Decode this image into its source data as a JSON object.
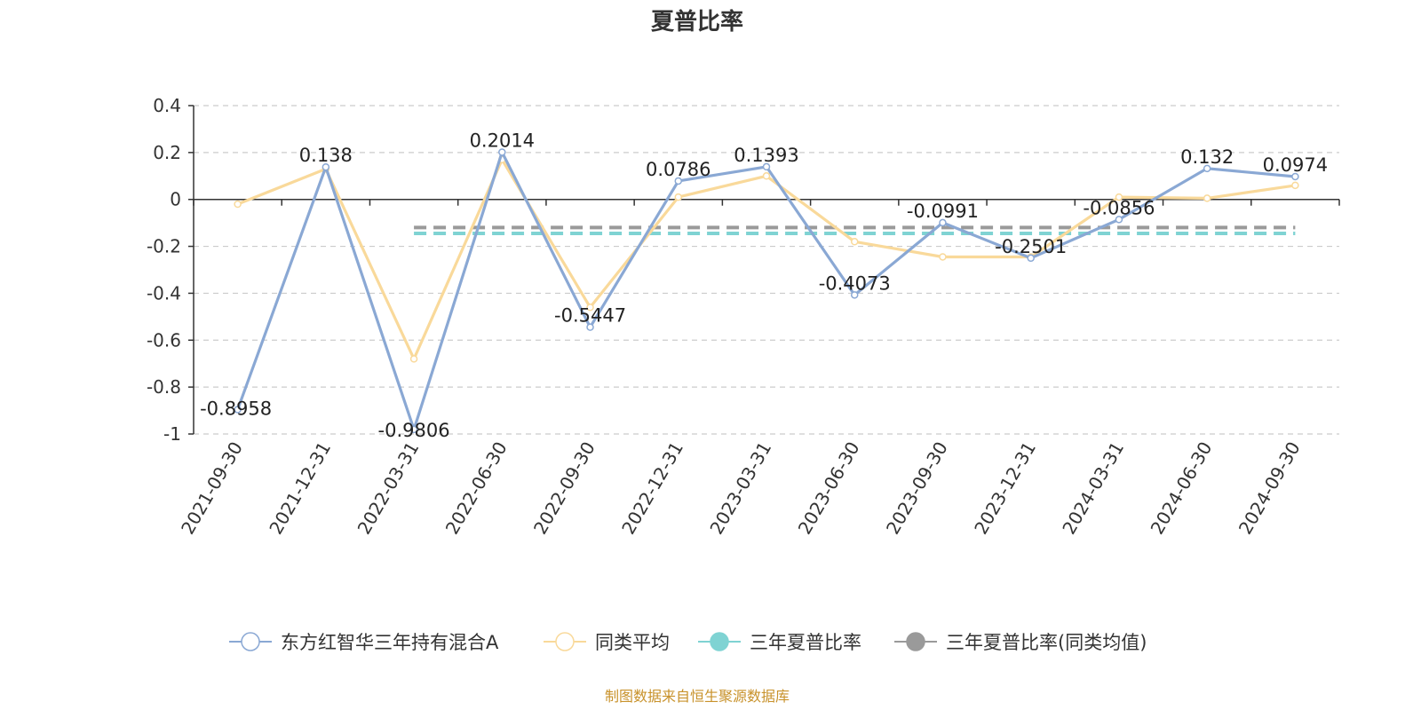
{
  "chart_data": {
    "type": "line",
    "title": "夏普比率",
    "categories": [
      "2021-09-30",
      "2021-12-31",
      "2022-03-31",
      "2022-06-30",
      "2022-09-30",
      "2022-12-31",
      "2023-03-31",
      "2023-06-30",
      "2023-09-30",
      "2023-12-31",
      "2024-03-31",
      "2024-06-30",
      "2024-09-30"
    ],
    "ylim": [
      -1,
      0.4
    ],
    "yticks": [
      "0.4",
      "0.2",
      "0",
      "-0.2",
      "-0.4",
      "-0.6",
      "-0.8",
      "-1"
    ],
    "grid": true,
    "legend_position": "bottom",
    "series": [
      {
        "name": "东方红智华三年持有混合A",
        "color": "#8aa8d4",
        "values": [
          -0.8958,
          0.138,
          -0.9806,
          0.2014,
          -0.5447,
          0.0786,
          0.1393,
          -0.4073,
          -0.0991,
          -0.2501,
          -0.0856,
          0.132,
          0.0974
        ],
        "labels": [
          "-0.8958",
          "0.138",
          "-0.9806",
          "0.2014",
          "-0.5447",
          "0.0786",
          "0.1393",
          "-0.4073",
          "-0.0991",
          "-0.2501",
          "-0.0856",
          "0.132",
          "0.0974"
        ]
      },
      {
        "name": "同类平均",
        "color": "#f9d99a",
        "values": [
          -0.02,
          0.13,
          -0.68,
          0.17,
          -0.46,
          0.01,
          0.1,
          -0.18,
          -0.245,
          -0.245,
          0.01,
          0.005,
          0.06
        ]
      },
      {
        "name": "三年夏普比率",
        "color": "#7fd3d3",
        "values": [
          null,
          null,
          -0.145,
          -0.145,
          -0.145,
          -0.145,
          -0.145,
          -0.145,
          -0.145,
          -0.145,
          -0.145,
          -0.145,
          -0.145
        ],
        "dashed": true
      },
      {
        "name": "三年夏普比率(同类均值)",
        "color": "#9a9a9a",
        "values": [
          null,
          null,
          -0.12,
          -0.12,
          -0.12,
          -0.12,
          -0.12,
          -0.12,
          -0.12,
          -0.12,
          -0.12,
          -0.12,
          -0.12
        ],
        "dashed": true
      }
    ],
    "source": "制图数据来自恒生聚源数据库"
  }
}
